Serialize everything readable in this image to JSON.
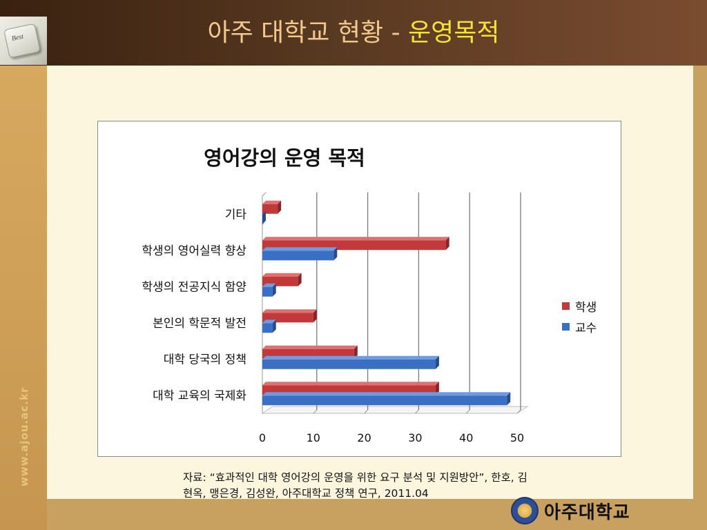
{
  "header": {
    "title_main": "아주 대학교 현황 - ",
    "title_highlight": "운영목적",
    "badge_label": "Best"
  },
  "sidebar": {
    "url": "www.ajou.ac.kr"
  },
  "colors": {
    "student": "#c0393b",
    "professor": "#3a6fc4",
    "title_highlight": "#f6e33a",
    "title": "#f2c88e"
  },
  "chart_data": {
    "type": "bar",
    "orientation": "horizontal",
    "title": "영어강의 운영 목적",
    "categories": [
      "기타",
      "학생의 영어실력 향상",
      "학생의 전공지식 함양",
      "본인의 학문적 발전",
      "대학 당국의 정책",
      "대학 교육의 국제화"
    ],
    "series": [
      {
        "name": "학생",
        "values": [
          3,
          36,
          7,
          10,
          18,
          34
        ]
      },
      {
        "name": "교수",
        "values": [
          0,
          14,
          2,
          2,
          34,
          48
        ]
      }
    ],
    "xlim": [
      0,
      50
    ],
    "xticks": [
      "0",
      "10",
      "20",
      "30",
      "40",
      "50"
    ],
    "grid": true,
    "legend": "right",
    "style": "3d"
  },
  "caption": {
    "line1": "자료: “효과적인 대학 영어강의 운영을 위한 요구 분석 및 지원방안”, 한호, 김",
    "line2": "현옥, 맹은경, 김성완, 아주대학교 정책 연구, 2011.04"
  },
  "footer": {
    "university_name": "아주대학교"
  }
}
